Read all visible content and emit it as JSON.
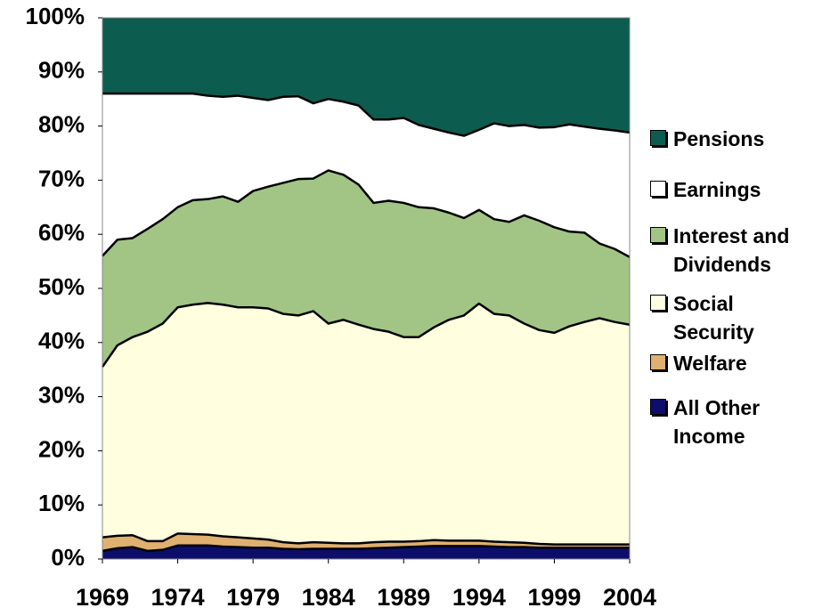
{
  "chart_data": {
    "type": "stacked_area",
    "x": [
      1969,
      1970,
      1971,
      1972,
      1973,
      1974,
      1975,
      1976,
      1977,
      1978,
      1979,
      1980,
      1981,
      1982,
      1983,
      1984,
      1985,
      1986,
      1987,
      1988,
      1989,
      1990,
      1991,
      1992,
      1993,
      1994,
      1995,
      1996,
      1997,
      1998,
      1999,
      2000,
      2001,
      2002,
      2003,
      2004
    ],
    "xlim": [
      1969,
      2004
    ],
    "xticks": [
      1969,
      1974,
      1979,
      1984,
      1989,
      1994,
      1999,
      2004
    ],
    "ylim": [
      0,
      100
    ],
    "yticks": [
      {
        "value": 0,
        "label": "0%"
      },
      {
        "value": 10,
        "label": "10%"
      },
      {
        "value": 20,
        "label": "20%"
      },
      {
        "value": 30,
        "label": "30%"
      },
      {
        "value": 40,
        "label": "40%"
      },
      {
        "value": 50,
        "label": "50%"
      },
      {
        "value": 60,
        "label": "60%"
      },
      {
        "value": 70,
        "label": "70%"
      },
      {
        "value": 80,
        "label": "80%"
      },
      {
        "value": 90,
        "label": "90%"
      },
      {
        "value": 100,
        "label": "100%"
      }
    ],
    "series": [
      {
        "name": "All Other Income",
        "color": "#0d0d6b",
        "values": [
          1.5,
          2,
          2.2,
          1.5,
          1.7,
          2.5,
          2.5,
          2.5,
          2.3,
          2.2,
          2.1,
          2.1,
          1.9,
          1.8,
          1.9,
          1.9,
          1.9,
          1.9,
          2.0,
          2.1,
          2.2,
          2.3,
          2.4,
          2.4,
          2.4,
          2.4,
          2.3,
          2.2,
          2.2,
          2.1,
          2.1,
          2.1,
          2.1,
          2.1,
          2.1,
          2.1
        ]
      },
      {
        "name": "Welfare",
        "color": "#e0b070",
        "values": [
          2.5,
          2.3,
          2.2,
          1.8,
          1.6,
          2.2,
          2.1,
          2.0,
          1.9,
          1.8,
          1.7,
          1.5,
          1.2,
          1.1,
          1.2,
          1.1,
          1.0,
          1.0,
          1.1,
          1.1,
          1.0,
          1.0,
          1.1,
          1.0,
          1.0,
          1.0,
          0.9,
          0.9,
          0.8,
          0.7,
          0.6,
          0.6,
          0.6,
          0.6,
          0.6,
          0.6
        ]
      },
      {
        "name": "Social Security",
        "color": "#ffffe0",
        "values": [
          31.5,
          35.2,
          36.6,
          38.7,
          40.2,
          41.8,
          42.4,
          42.8,
          42.8,
          42.5,
          42.7,
          42.7,
          42.2,
          42.1,
          42.7,
          40.5,
          41.3,
          40.4,
          39.4,
          38.8,
          37.8,
          37.7,
          39.3,
          40.8,
          41.6,
          43.8,
          42.1,
          41.9,
          40.5,
          39.5,
          39.1,
          40.3,
          41.1,
          41.8,
          41.1,
          40.6
        ]
      },
      {
        "name": "Interest and Dividends",
        "color": "#a2c585",
        "values": [
          20.5,
          19.5,
          18.3,
          19,
          19.3,
          18.5,
          19.3,
          19.2,
          20,
          19.5,
          21.5,
          22.5,
          24.2,
          25.2,
          24.5,
          28.3,
          26.8,
          25.9,
          23.3,
          24.2,
          24.8,
          24,
          22,
          19.8,
          18,
          17.3,
          17.5,
          17.3,
          20,
          20.2,
          19.5,
          17.5,
          16.5,
          13.8,
          13.5,
          12.5
        ]
      },
      {
        "name": "Earnings",
        "color": "#ffffff",
        "values": [
          30,
          27,
          26.7,
          25,
          23.2,
          21,
          19.7,
          19.1,
          18.4,
          19.6,
          17.2,
          16,
          15.9,
          15.3,
          13.9,
          13.2,
          13.5,
          14.6,
          15.4,
          15,
          15.7,
          15.2,
          14.7,
          14.8,
          15.2,
          14.8,
          17.7,
          17.7,
          16.7,
          17.2,
          18.5,
          19.8,
          19.6,
          21.2,
          21.9,
          23
        ]
      },
      {
        "name": "Pensions",
        "color": "#0d5c50",
        "values": [
          14,
          14,
          14,
          14,
          14,
          14,
          14,
          14.4,
          14.6,
          14.4,
          14.8,
          15.2,
          14.6,
          14.5,
          15.8,
          15,
          15.5,
          16.2,
          18.8,
          18.8,
          18.5,
          19.8,
          20.5,
          21.2,
          21.8,
          20.7,
          19.5,
          20,
          19.8,
          20.3,
          20.2,
          19.7,
          20.1,
          20.5,
          20.8,
          21.2
        ]
      }
    ]
  }
}
